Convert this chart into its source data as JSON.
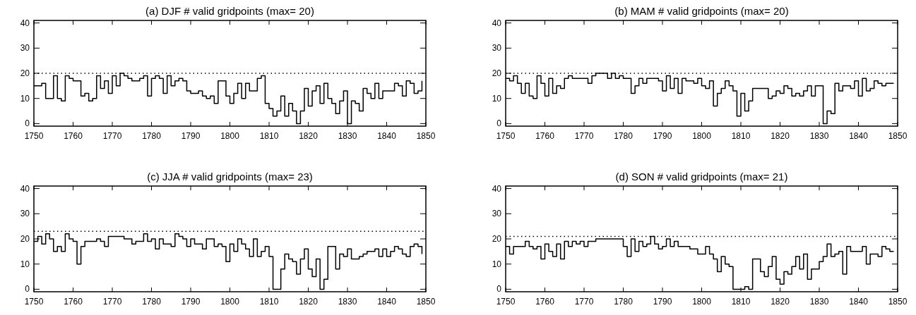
{
  "chart_data": [
    {
      "type": "step",
      "title": "(a) DJF # valid gridpoints (max= 20)",
      "x": [
        1750,
        1751,
        1752,
        1753,
        1754,
        1755,
        1756,
        1757,
        1758,
        1759,
        1760,
        1761,
        1762,
        1763,
        1764,
        1765,
        1766,
        1767,
        1768,
        1769,
        1770,
        1771,
        1772,
        1773,
        1774,
        1775,
        1776,
        1777,
        1778,
        1779,
        1780,
        1781,
        1782,
        1783,
        1784,
        1785,
        1786,
        1787,
        1788,
        1789,
        1790,
        1791,
        1792,
        1793,
        1794,
        1795,
        1796,
        1797,
        1798,
        1799,
        1800,
        1801,
        1802,
        1803,
        1804,
        1805,
        1806,
        1807,
        1808,
        1809,
        1810,
        1811,
        1812,
        1813,
        1814,
        1815,
        1816,
        1817,
        1818,
        1819,
        1820,
        1821,
        1822,
        1823,
        1824,
        1825,
        1826,
        1827,
        1828,
        1829,
        1830,
        1831,
        1832,
        1833,
        1834,
        1835,
        1836,
        1837,
        1838,
        1839,
        1840,
        1841,
        1842,
        1843,
        1844,
        1845,
        1846,
        1847,
        1848,
        1849
      ],
      "series": [
        {
          "color": "#000000",
          "values": [
            15,
            15,
            16,
            10,
            10,
            19,
            10,
            9,
            19,
            18,
            17,
            17,
            11,
            12,
            9,
            10,
            19,
            14,
            17,
            12,
            19,
            15,
            20,
            19,
            18,
            17,
            17,
            18,
            19,
            11,
            18,
            19,
            18,
            12,
            19,
            15,
            17,
            18,
            17,
            13,
            12,
            12,
            13,
            11,
            10,
            11,
            8,
            17,
            17,
            11,
            8,
            12,
            16,
            10,
            16,
            13,
            13,
            18,
            19,
            8,
            6,
            3,
            5,
            11,
            3,
            8,
            5,
            0,
            5,
            14,
            7,
            13,
            15,
            8,
            16,
            10,
            8,
            4,
            9,
            13,
            0,
            9,
            8,
            5,
            14,
            12,
            10,
            16,
            10,
            13,
            13,
            13,
            16,
            15,
            11,
            17,
            16,
            12,
            13,
            17
          ]
        }
      ],
      "xlim": [
        1750,
        1850
      ],
      "ylim": [
        -1,
        41
      ],
      "xticks": [
        1750,
        1760,
        1770,
        1780,
        1790,
        1800,
        1810,
        1820,
        1830,
        1840,
        1850
      ],
      "yticks": [
        0,
        10,
        20,
        30,
        40
      ],
      "ref_lines": [
        {
          "axis": "y",
          "value": 20,
          "line_style": "dotted"
        }
      ]
    },
    {
      "type": "step",
      "title": "(b) MAM # valid gridpoints (max= 20)",
      "x": [
        1750,
        1751,
        1752,
        1753,
        1754,
        1755,
        1756,
        1757,
        1758,
        1759,
        1760,
        1761,
        1762,
        1763,
        1764,
        1765,
        1766,
        1767,
        1768,
        1769,
        1770,
        1771,
        1772,
        1773,
        1774,
        1775,
        1776,
        1777,
        1778,
        1779,
        1780,
        1781,
        1782,
        1783,
        1784,
        1785,
        1786,
        1787,
        1788,
        1789,
        1790,
        1791,
        1792,
        1793,
        1794,
        1795,
        1796,
        1797,
        1798,
        1799,
        1800,
        1801,
        1802,
        1803,
        1804,
        1805,
        1806,
        1807,
        1808,
        1809,
        1810,
        1811,
        1812,
        1813,
        1814,
        1815,
        1816,
        1817,
        1818,
        1819,
        1820,
        1821,
        1822,
        1823,
        1824,
        1825,
        1826,
        1827,
        1828,
        1829,
        1830,
        1831,
        1832,
        1833,
        1834,
        1835,
        1836,
        1837,
        1838,
        1839,
        1840,
        1841,
        1842,
        1843,
        1844,
        1845,
        1846,
        1847,
        1848,
        1849
      ],
      "series": [
        {
          "color": "#000000",
          "values": [
            18,
            17,
            19,
            16,
            12,
            16,
            11,
            10,
            19,
            16,
            11,
            18,
            12,
            15,
            14,
            18,
            19,
            18,
            18,
            18,
            18,
            16,
            19,
            20,
            20,
            20,
            18,
            20,
            18,
            19,
            18,
            18,
            12,
            15,
            18,
            16,
            18,
            18,
            18,
            17,
            13,
            19,
            14,
            18,
            12,
            18,
            17,
            17,
            16,
            18,
            15,
            14,
            17,
            7,
            12,
            14,
            17,
            15,
            13,
            3,
            12,
            5,
            9,
            14,
            14,
            14,
            14,
            10,
            11,
            13,
            12,
            15,
            14,
            11,
            12,
            11,
            13,
            15,
            11,
            15,
            15,
            0,
            5,
            4,
            16,
            13,
            15,
            15,
            14,
            17,
            11,
            18,
            13,
            14,
            17,
            16,
            15,
            16,
            16,
            16
          ]
        }
      ],
      "xlim": [
        1750,
        1850
      ],
      "ylim": [
        -1,
        41
      ],
      "xticks": [
        1750,
        1760,
        1770,
        1780,
        1790,
        1800,
        1810,
        1820,
        1830,
        1840,
        1850
      ],
      "yticks": [
        0,
        10,
        20,
        30,
        40
      ],
      "ref_lines": [
        {
          "axis": "y",
          "value": 20,
          "line_style": "dotted"
        }
      ]
    },
    {
      "type": "step",
      "title": "(c) JJA # valid gridpoints (max= 23)",
      "x": [
        1750,
        1751,
        1752,
        1753,
        1754,
        1755,
        1756,
        1757,
        1758,
        1759,
        1760,
        1761,
        1762,
        1763,
        1764,
        1765,
        1766,
        1767,
        1768,
        1769,
        1770,
        1771,
        1772,
        1773,
        1774,
        1775,
        1776,
        1777,
        1778,
        1779,
        1780,
        1781,
        1782,
        1783,
        1784,
        1785,
        1786,
        1787,
        1788,
        1789,
        1790,
        1791,
        1792,
        1793,
        1794,
        1795,
        1796,
        1797,
        1798,
        1799,
        1800,
        1801,
        1802,
        1803,
        1804,
        1805,
        1806,
        1807,
        1808,
        1809,
        1810,
        1811,
        1812,
        1813,
        1814,
        1815,
        1816,
        1817,
        1818,
        1819,
        1820,
        1821,
        1822,
        1823,
        1824,
        1825,
        1826,
        1827,
        1828,
        1829,
        1830,
        1831,
        1832,
        1833,
        1834,
        1835,
        1836,
        1837,
        1838,
        1839,
        1840,
        1841,
        1842,
        1843,
        1844,
        1845,
        1846,
        1847,
        1848,
        1849
      ],
      "series": [
        {
          "color": "#000000",
          "values": [
            19,
            21,
            18,
            22,
            20,
            15,
            17,
            15,
            22,
            20,
            19,
            10,
            17,
            19,
            19,
            19,
            20,
            19,
            17,
            21,
            21,
            21,
            21,
            20,
            20,
            18,
            19,
            19,
            22,
            19,
            20,
            16,
            20,
            18,
            18,
            17,
            22,
            21,
            20,
            17,
            20,
            18,
            18,
            16,
            20,
            20,
            17,
            18,
            17,
            11,
            18,
            15,
            20,
            18,
            16,
            13,
            20,
            13,
            15,
            17,
            13,
            0,
            0,
            8,
            14,
            12,
            11,
            6,
            12,
            16,
            8,
            5,
            12,
            0,
            4,
            17,
            17,
            8,
            14,
            13,
            16,
            12,
            12,
            13,
            14,
            15,
            15,
            16,
            13,
            16,
            13,
            15,
            17,
            16,
            14,
            13,
            17,
            18,
            17,
            14
          ]
        }
      ],
      "xlim": [
        1750,
        1850
      ],
      "ylim": [
        -1,
        41
      ],
      "xticks": [
        1750,
        1760,
        1770,
        1780,
        1790,
        1800,
        1810,
        1820,
        1830,
        1840,
        1850
      ],
      "yticks": [
        0,
        10,
        20,
        30,
        40
      ],
      "ref_lines": [
        {
          "axis": "y",
          "value": 23,
          "line_style": "dotted"
        }
      ]
    },
    {
      "type": "step",
      "title": "(d) SON # valid gridpoints (max= 21)",
      "x": [
        1750,
        1751,
        1752,
        1753,
        1754,
        1755,
        1756,
        1757,
        1758,
        1759,
        1760,
        1761,
        1762,
        1763,
        1764,
        1765,
        1766,
        1767,
        1768,
        1769,
        1770,
        1771,
        1772,
        1773,
        1774,
        1775,
        1776,
        1777,
        1778,
        1779,
        1780,
        1781,
        1782,
        1783,
        1784,
        1785,
        1786,
        1787,
        1788,
        1789,
        1790,
        1791,
        1792,
        1793,
        1794,
        1795,
        1796,
        1797,
        1798,
        1799,
        1800,
        1801,
        1802,
        1803,
        1804,
        1805,
        1806,
        1807,
        1808,
        1809,
        1810,
        1811,
        1812,
        1813,
        1814,
        1815,
        1816,
        1817,
        1818,
        1819,
        1820,
        1821,
        1822,
        1823,
        1824,
        1825,
        1826,
        1827,
        1828,
        1829,
        1830,
        1831,
        1832,
        1833,
        1834,
        1835,
        1836,
        1837,
        1838,
        1839,
        1840,
        1841,
        1842,
        1843,
        1844,
        1845,
        1846,
        1847,
        1848,
        1849
      ],
      "series": [
        {
          "color": "#000000",
          "values": [
            17,
            14,
            17,
            17,
            17,
            19,
            17,
            16,
            17,
            12,
            18,
            15,
            13,
            18,
            12,
            19,
            17,
            19,
            18,
            19,
            17,
            19,
            19,
            20,
            20,
            20,
            20,
            20,
            20,
            20,
            17,
            13,
            20,
            15,
            19,
            17,
            18,
            21,
            18,
            16,
            17,
            20,
            17,
            19,
            17,
            17,
            17,
            16,
            16,
            14,
            14,
            17,
            14,
            12,
            7,
            13,
            10,
            9,
            0,
            0,
            0,
            1,
            0,
            12,
            12,
            7,
            5,
            9,
            13,
            4,
            2,
            7,
            6,
            9,
            13,
            8,
            14,
            4,
            8,
            8,
            11,
            13,
            18,
            13,
            14,
            15,
            6,
            17,
            15,
            15,
            15,
            17,
            10,
            14,
            14,
            13,
            17,
            16,
            15,
            15
          ]
        }
      ],
      "xlim": [
        1750,
        1850
      ],
      "ylim": [
        -1,
        41
      ],
      "xticks": [
        1750,
        1760,
        1770,
        1780,
        1790,
        1800,
        1810,
        1820,
        1830,
        1840,
        1850
      ],
      "yticks": [
        0,
        10,
        20,
        30,
        40
      ],
      "ref_lines": [
        {
          "axis": "y",
          "value": 21,
          "line_style": "dotted"
        }
      ]
    }
  ]
}
